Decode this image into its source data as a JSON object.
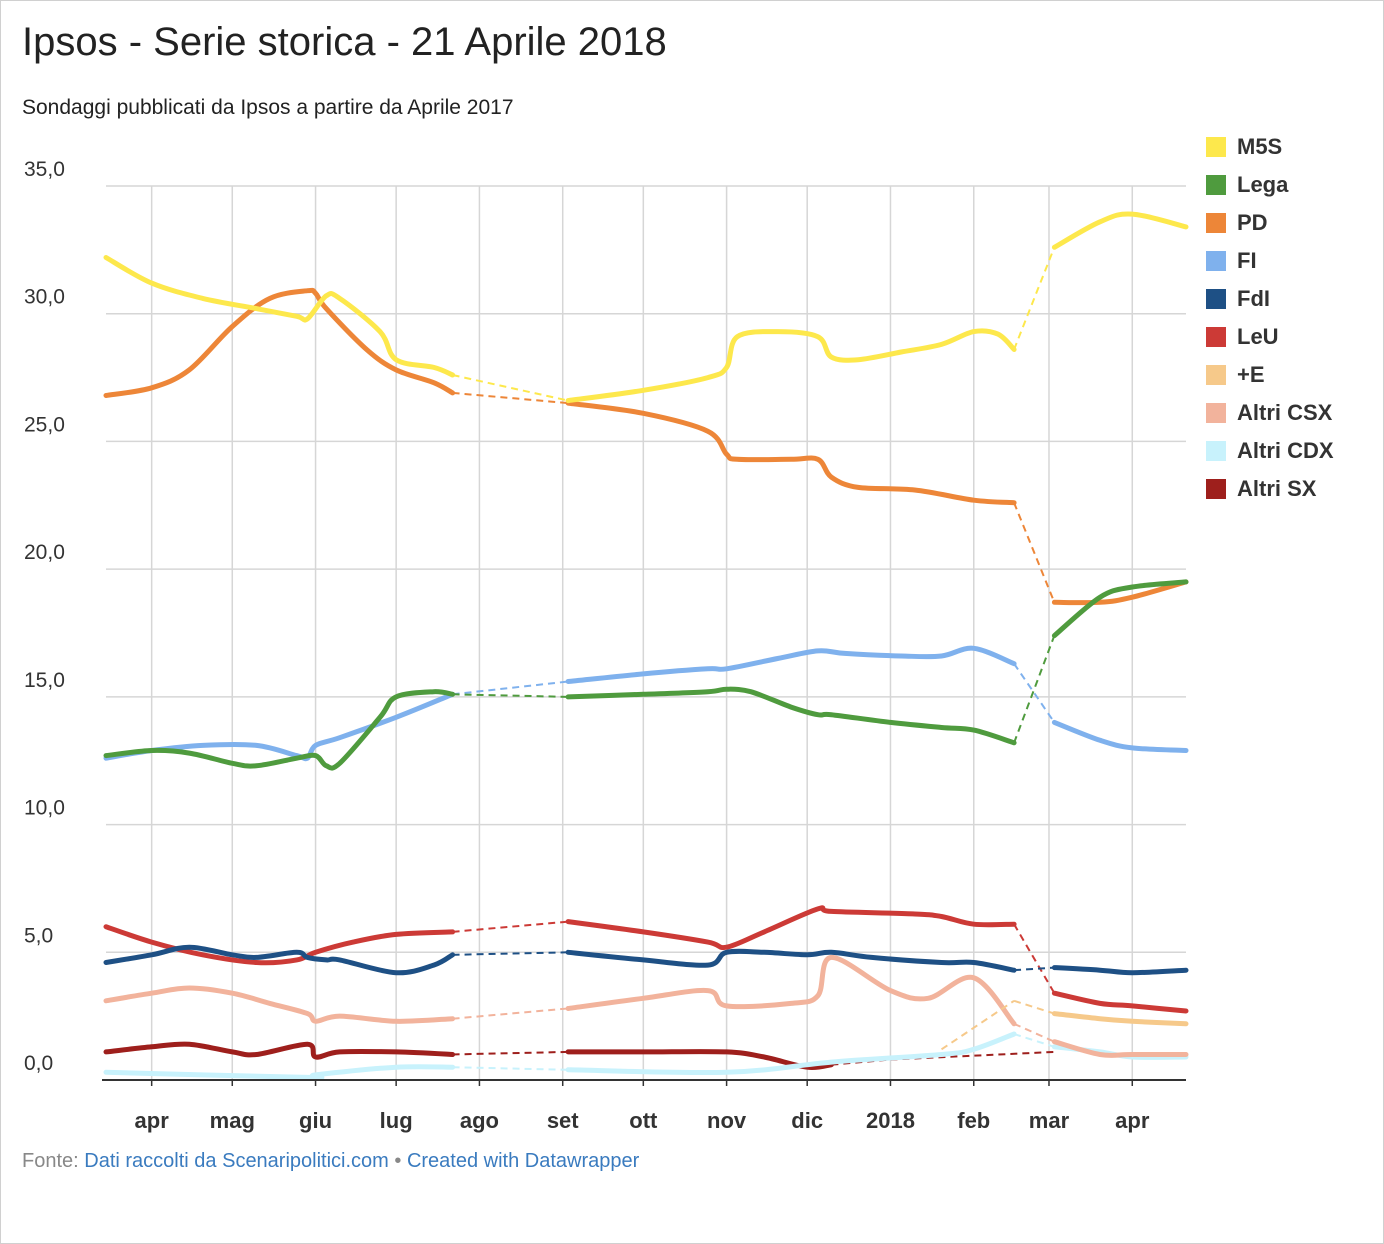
{
  "header": {
    "title": "Ipsos - Serie storica - 21 Aprile 2018",
    "subtitle": "Sondaggi pubblicati da Ipsos a partire da Aprile 2017"
  },
  "footer": {
    "prefix": "Fonte: ",
    "source_link": "Dati raccolti da Scenaripolitici.com",
    "separator": " • ",
    "created_link": "Created with Datawrapper"
  },
  "chart_data": {
    "type": "line",
    "title": "Ipsos - Serie storica - 21 Aprile 2018",
    "subtitle": "Sondaggi pubblicati da Ipsos a partire da Aprile 2017",
    "xlabel": "",
    "ylabel": "",
    "ylim": [
      0,
      35
    ],
    "y_ticks": [
      "35,0",
      "30,0",
      "25,0",
      "20,0",
      "15,0",
      "10,0",
      "5,0",
      "0,0"
    ],
    "y_tick_values": [
      35,
      30,
      25,
      20,
      15,
      10,
      5,
      0
    ],
    "x_ticks": [
      "apr",
      "mag",
      "giu",
      "lug",
      "ago",
      "set",
      "ott",
      "nov",
      "dic",
      "2018",
      "feb",
      "mar",
      "apr"
    ],
    "x_tick_dates": [
      "2017-04-01",
      "2017-05-01",
      "2017-06-01",
      "2017-07-01",
      "2017-08-01",
      "2017-09-01",
      "2017-10-01",
      "2017-11-01",
      "2017-12-01",
      "2018-01-01",
      "2018-02-01",
      "2018-03-01",
      "2018-04-01"
    ],
    "x_range": [
      "2017-03-15",
      "2018-04-21"
    ],
    "grid": true,
    "legend_position": "right",
    "series": [
      {
        "name": "M5S",
        "color": "#fde84c",
        "points": [
          [
            "2017-03-15",
            32.2
          ],
          [
            "2017-04-01",
            31.2
          ],
          [
            "2017-04-20",
            30.6
          ],
          [
            "2017-05-10",
            30.2
          ],
          [
            "2017-05-25",
            29.9
          ],
          [
            "2017-05-29",
            29.8
          ],
          [
            "2017-06-05",
            30.7
          ],
          [
            "2017-06-10",
            30.6
          ],
          [
            "2017-06-25",
            29.3
          ],
          [
            "2017-07-01",
            28.2
          ],
          [
            "2017-07-15",
            27.9
          ],
          [
            "2017-07-22",
            27.6
          ],
          [
            "2017-09-03",
            26.6
          ],
          [
            "2017-10-01",
            27.0
          ],
          [
            "2017-10-25",
            27.5
          ],
          [
            "2017-11-01",
            27.9
          ],
          [
            "2017-11-05",
            29.1
          ],
          [
            "2017-11-20",
            29.3
          ],
          [
            "2017-12-05",
            29.1
          ],
          [
            "2017-12-10",
            28.3
          ],
          [
            "2017-12-20",
            28.2
          ],
          [
            "2018-01-05",
            28.5
          ],
          [
            "2018-01-20",
            28.8
          ],
          [
            "2018-02-01",
            29.3
          ],
          [
            "2018-02-10",
            29.2
          ],
          [
            "2018-02-16",
            28.6
          ],
          [
            "2018-03-03",
            32.6
          ],
          [
            "2018-03-20",
            33.6
          ],
          [
            "2018-04-01",
            33.9
          ],
          [
            "2018-04-21",
            33.4
          ]
        ]
      },
      {
        "name": "Lega",
        "color": "#4f9b3e",
        "points": [
          [
            "2017-03-15",
            12.7
          ],
          [
            "2017-04-01",
            12.9
          ],
          [
            "2017-04-15",
            12.8
          ],
          [
            "2017-05-01",
            12.4
          ],
          [
            "2017-05-10",
            12.3
          ],
          [
            "2017-05-25",
            12.6
          ],
          [
            "2017-06-01",
            12.7
          ],
          [
            "2017-06-05",
            12.3
          ],
          [
            "2017-06-10",
            12.4
          ],
          [
            "2017-06-25",
            14.2
          ],
          [
            "2017-07-01",
            15.0
          ],
          [
            "2017-07-15",
            15.2
          ],
          [
            "2017-07-22",
            15.1
          ],
          [
            "2017-09-03",
            15.0
          ],
          [
            "2017-10-01",
            15.1
          ],
          [
            "2017-10-25",
            15.2
          ],
          [
            "2017-11-01",
            15.3
          ],
          [
            "2017-11-10",
            15.2
          ],
          [
            "2017-11-25",
            14.6
          ],
          [
            "2017-12-05",
            14.3
          ],
          [
            "2017-12-10",
            14.3
          ],
          [
            "2018-01-01",
            14.0
          ],
          [
            "2018-01-20",
            13.8
          ],
          [
            "2018-02-01",
            13.7
          ],
          [
            "2018-02-16",
            13.2
          ],
          [
            "2018-03-03",
            17.4
          ],
          [
            "2018-03-20",
            18.9
          ],
          [
            "2018-04-01",
            19.3
          ],
          [
            "2018-04-21",
            19.5
          ]
        ]
      },
      {
        "name": "PD",
        "color": "#ed8638",
        "points": [
          [
            "2017-03-15",
            26.8
          ],
          [
            "2017-04-01",
            27.1
          ],
          [
            "2017-04-15",
            27.8
          ],
          [
            "2017-05-01",
            29.5
          ],
          [
            "2017-05-15",
            30.6
          ],
          [
            "2017-05-29",
            30.9
          ],
          [
            "2017-06-01",
            30.8
          ],
          [
            "2017-06-05",
            30.2
          ],
          [
            "2017-06-20",
            28.6
          ],
          [
            "2017-07-01",
            27.8
          ],
          [
            "2017-07-15",
            27.3
          ],
          [
            "2017-07-22",
            26.9
          ],
          [
            "2017-09-03",
            26.5
          ],
          [
            "2017-10-01",
            26.1
          ],
          [
            "2017-10-25",
            25.4
          ],
          [
            "2017-11-01",
            24.5
          ],
          [
            "2017-11-05",
            24.3
          ],
          [
            "2017-11-25",
            24.3
          ],
          [
            "2017-12-05",
            24.3
          ],
          [
            "2017-12-10",
            23.6
          ],
          [
            "2017-12-20",
            23.2
          ],
          [
            "2018-01-10",
            23.1
          ],
          [
            "2018-02-01",
            22.7
          ],
          [
            "2018-02-16",
            22.6
          ],
          [
            "2018-03-03",
            18.7
          ],
          [
            "2018-03-20",
            18.7
          ],
          [
            "2018-04-01",
            18.9
          ],
          [
            "2018-04-21",
            19.5
          ]
        ]
      },
      {
        "name": "FI",
        "color": "#7fb1ed",
        "points": [
          [
            "2017-03-15",
            12.6
          ],
          [
            "2017-04-01",
            12.9
          ],
          [
            "2017-04-20",
            13.1
          ],
          [
            "2017-05-10",
            13.1
          ],
          [
            "2017-05-25",
            12.7
          ],
          [
            "2017-05-29",
            12.6
          ],
          [
            "2017-06-01",
            13.1
          ],
          [
            "2017-06-10",
            13.4
          ],
          [
            "2017-07-01",
            14.2
          ],
          [
            "2017-07-22",
            15.1
          ],
          [
            "2017-09-03",
            15.6
          ],
          [
            "2017-10-01",
            15.9
          ],
          [
            "2017-10-25",
            16.1
          ],
          [
            "2017-11-01",
            16.1
          ],
          [
            "2017-11-20",
            16.5
          ],
          [
            "2017-12-05",
            16.8
          ],
          [
            "2017-12-15",
            16.7
          ],
          [
            "2018-01-05",
            16.6
          ],
          [
            "2018-01-20",
            16.6
          ],
          [
            "2018-02-01",
            16.9
          ],
          [
            "2018-02-16",
            16.3
          ],
          [
            "2018-03-03",
            14.0
          ],
          [
            "2018-03-20",
            13.3
          ],
          [
            "2018-04-01",
            13.0
          ],
          [
            "2018-04-21",
            12.9
          ]
        ]
      },
      {
        "name": "FdI",
        "color": "#1e5085",
        "points": [
          [
            "2017-03-15",
            4.6
          ],
          [
            "2017-04-01",
            4.9
          ],
          [
            "2017-04-15",
            5.2
          ],
          [
            "2017-05-01",
            4.9
          ],
          [
            "2017-05-10",
            4.8
          ],
          [
            "2017-05-25",
            5.0
          ],
          [
            "2017-05-29",
            4.8
          ],
          [
            "2017-06-05",
            4.7
          ],
          [
            "2017-06-10",
            4.7
          ],
          [
            "2017-07-01",
            4.2
          ],
          [
            "2017-07-15",
            4.5
          ],
          [
            "2017-07-22",
            4.9
          ],
          [
            "2017-09-03",
            5.0
          ],
          [
            "2017-10-01",
            4.7
          ],
          [
            "2017-10-25",
            4.5
          ],
          [
            "2017-11-01",
            5.0
          ],
          [
            "2017-11-15",
            5.0
          ],
          [
            "2017-12-01",
            4.9
          ],
          [
            "2017-12-10",
            5.0
          ],
          [
            "2017-12-25",
            4.8
          ],
          [
            "2018-01-20",
            4.6
          ],
          [
            "2018-02-01",
            4.6
          ],
          [
            "2018-02-16",
            4.3
          ],
          [
            "2018-03-03",
            4.4
          ],
          [
            "2018-03-20",
            4.3
          ],
          [
            "2018-04-01",
            4.2
          ],
          [
            "2018-04-21",
            4.3
          ]
        ]
      },
      {
        "name": "LeU",
        "color": "#cc3a36",
        "points": [
          [
            "2017-03-15",
            6.0
          ],
          [
            "2017-04-01",
            5.4
          ],
          [
            "2017-04-20",
            4.9
          ],
          [
            "2017-05-10",
            4.6
          ],
          [
            "2017-05-25",
            4.7
          ],
          [
            "2017-06-01",
            5.0
          ],
          [
            "2017-06-15",
            5.4
          ],
          [
            "2017-07-01",
            5.7
          ],
          [
            "2017-07-22",
            5.8
          ],
          [
            "2017-09-03",
            6.2
          ],
          [
            "2017-10-01",
            5.8
          ],
          [
            "2017-10-25",
            5.4
          ],
          [
            "2017-11-01",
            5.2
          ],
          [
            "2017-11-15",
            5.8
          ],
          [
            "2017-12-05",
            6.7
          ],
          [
            "2017-12-10",
            6.6
          ],
          [
            "2018-01-10",
            6.5
          ],
          [
            "2018-01-20",
            6.4
          ],
          [
            "2018-02-01",
            6.1
          ],
          [
            "2018-02-16",
            6.1
          ],
          [
            "2018-03-03",
            3.4
          ],
          [
            "2018-03-20",
            3.0
          ],
          [
            "2018-04-01",
            2.9
          ],
          [
            "2018-04-21",
            2.7
          ]
        ]
      },
      {
        "name": "+E",
        "color": "#f6c98a",
        "points": [
          [
            "2018-01-20",
            1.2
          ],
          [
            "2018-02-16",
            3.1
          ],
          [
            "2018-03-03",
            2.6
          ],
          [
            "2018-03-20",
            2.4
          ],
          [
            "2018-04-01",
            2.3
          ],
          [
            "2018-04-21",
            2.2
          ]
        ]
      },
      {
        "name": "Altri CSX",
        "color": "#f2b39c",
        "points": [
          [
            "2017-03-15",
            3.1
          ],
          [
            "2017-04-01",
            3.4
          ],
          [
            "2017-04-15",
            3.6
          ],
          [
            "2017-05-01",
            3.4
          ],
          [
            "2017-05-15",
            3.0
          ],
          [
            "2017-05-29",
            2.6
          ],
          [
            "2017-06-01",
            2.3
          ],
          [
            "2017-06-10",
            2.5
          ],
          [
            "2017-07-01",
            2.3
          ],
          [
            "2017-07-22",
            2.4
          ],
          [
            "2017-09-03",
            2.8
          ],
          [
            "2017-10-01",
            3.2
          ],
          [
            "2017-10-25",
            3.5
          ],
          [
            "2017-11-01",
            2.9
          ],
          [
            "2017-11-25",
            3.0
          ],
          [
            "2017-12-05",
            3.3
          ],
          [
            "2017-12-10",
            4.8
          ],
          [
            "2018-01-01",
            3.5
          ],
          [
            "2018-01-15",
            3.2
          ],
          [
            "2018-02-01",
            4.0
          ],
          [
            "2018-02-16",
            2.2
          ],
          [
            "2018-03-03",
            1.5
          ],
          [
            "2018-03-20",
            1.0
          ],
          [
            "2018-04-01",
            1.0
          ],
          [
            "2018-04-21",
            1.0
          ]
        ]
      },
      {
        "name": "Altri CDX",
        "color": "#c8f2fc",
        "points": [
          [
            "2017-03-15",
            0.3
          ],
          [
            "2017-05-29",
            0.1
          ],
          [
            "2017-06-01",
            0.2
          ],
          [
            "2017-07-01",
            0.5
          ],
          [
            "2017-07-22",
            0.5
          ],
          [
            "2017-09-03",
            0.4
          ],
          [
            "2017-11-01",
            0.3
          ],
          [
            "2017-12-10",
            0.7
          ],
          [
            "2018-01-20",
            1.0
          ],
          [
            "2018-02-01",
            1.2
          ],
          [
            "2018-02-16",
            1.8
          ],
          [
            "2018-03-03",
            1.3
          ],
          [
            "2018-03-20",
            1.1
          ],
          [
            "2018-04-01",
            0.9
          ],
          [
            "2018-04-21",
            0.9
          ]
        ]
      },
      {
        "name": "Altri SX",
        "color": "#9e1f1c",
        "points": [
          [
            "2017-03-15",
            1.1
          ],
          [
            "2017-04-01",
            1.3
          ],
          [
            "2017-04-15",
            1.4
          ],
          [
            "2017-05-01",
            1.1
          ],
          [
            "2017-05-10",
            1.0
          ],
          [
            "2017-05-29",
            1.4
          ],
          [
            "2017-06-01",
            0.9
          ],
          [
            "2017-06-10",
            1.1
          ],
          [
            "2017-07-01",
            1.1
          ],
          [
            "2017-07-22",
            1.0
          ],
          [
            "2017-09-03",
            1.1
          ],
          [
            "2017-10-01",
            1.1
          ],
          [
            "2017-11-01",
            1.1
          ],
          [
            "2017-11-15",
            0.9
          ],
          [
            "2017-12-01",
            0.5
          ],
          [
            "2017-12-10",
            0.6
          ],
          [
            "2018-01-01",
            0.8
          ],
          [
            "2018-03-03",
            1.1
          ]
        ]
      }
    ]
  }
}
